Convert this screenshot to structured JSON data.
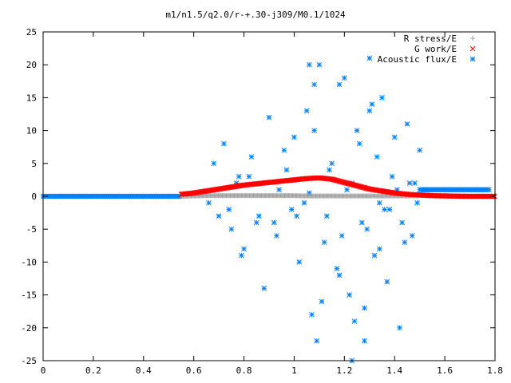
{
  "chart_data": {
    "type": "scatter",
    "title": "m1/n1.5/q2.0/r-+.30-j309/M0.1/1024",
    "xlim": [
      0,
      1.8
    ],
    "ylim": [
      -25,
      25
    ],
    "xticks": [
      "0",
      "0.2",
      "0.4",
      "0.6",
      "0.8",
      "1",
      "1.2",
      "1.4",
      "1.6",
      "1.8"
    ],
    "yticks": [
      "25",
      "20",
      "15",
      "10",
      "5",
      "0",
      "-5",
      "-10",
      "-15",
      "-20",
      "-25"
    ],
    "grid": false,
    "legend_position": "top-right",
    "series": [
      {
        "name": "R stress/E",
        "marker": "plus",
        "color": "#a0a0a0",
        "x": [
          0.55,
          0.6,
          0.65,
          0.7,
          0.75,
          0.8,
          0.85,
          0.9,
          0.95,
          1.0,
          1.05,
          1.1,
          1.15,
          1.2,
          1.25,
          1.3,
          1.35,
          1.4,
          1.45,
          1.5,
          1.55,
          1.6,
          1.65,
          1.7,
          1.75,
          1.8
        ],
        "y": [
          0.0,
          0.05,
          0.1,
          0.1,
          0.1,
          0.1,
          0.1,
          0.1,
          0.1,
          0.1,
          0.05,
          0.05,
          0.05,
          0.05,
          0.05,
          0.05,
          0.05,
          0.05,
          0.05,
          0.1,
          0.1,
          0.1,
          0.05,
          0.0,
          0.0,
          0.0
        ]
      },
      {
        "name": "G work/E",
        "marker": "cross",
        "color": "#ff0000",
        "x": [
          0.55,
          0.6,
          0.65,
          0.7,
          0.75,
          0.8,
          0.85,
          0.9,
          0.95,
          1.0,
          1.05,
          1.1,
          1.15,
          1.2,
          1.25,
          1.3,
          1.35,
          1.4,
          1.45,
          1.5,
          1.55,
          1.6,
          1.65,
          1.7,
          1.75,
          1.8
        ],
        "y": [
          0.3,
          0.5,
          0.8,
          1.1,
          1.4,
          1.7,
          1.9,
          2.1,
          2.3,
          2.5,
          2.7,
          2.8,
          2.6,
          2.1,
          1.6,
          1.1,
          0.8,
          0.5,
          0.3,
          0.2,
          0.1,
          0.05,
          0.02,
          0.0,
          0.0,
          0.0
        ]
      },
      {
        "name": "Acoustic flux/E",
        "marker": "star",
        "color": "#0080ff",
        "baseline_left": {
          "x0": 0.0,
          "x1": 0.55,
          "y": 0.0
        },
        "baseline_right": {
          "x0": 1.5,
          "x1": 1.78,
          "y": 1.0
        },
        "scatter_x": [
          0.72,
          0.75,
          0.78,
          0.8,
          0.83,
          0.86,
          0.9,
          0.93,
          0.97,
          1.0,
          1.02,
          1.05,
          1.07,
          1.1,
          1.12,
          1.15,
          1.18,
          1.2,
          1.22,
          1.25,
          1.27,
          1.3,
          1.32,
          1.35,
          1.37,
          1.4,
          1.42,
          1.45,
          1.47,
          1.5,
          0.68,
          0.74,
          0.79,
          0.82,
          0.88,
          0.92,
          0.96,
          1.01,
          1.04,
          1.08,
          1.11,
          1.14,
          1.17,
          1.21,
          1.24,
          1.28,
          1.31,
          1.34,
          1.38,
          1.41,
          1.44,
          1.48,
          0.62,
          0.66,
          0.7,
          0.77,
          0.85,
          0.94,
          0.99,
          1.06,
          1.13,
          1.19,
          1.23,
          1.26,
          1.29,
          1.33,
          1.36,
          1.39,
          1.43,
          1.46,
          1.49,
          1.52,
          1.09,
          1.18,
          1.23,
          1.06,
          1.3,
          1.34,
          1.28,
          1.08
        ],
        "scatter_y": [
          8,
          -5,
          3,
          -8,
          6,
          -3,
          12,
          -6,
          4,
          9,
          -10,
          13,
          -18,
          20,
          -7,
          5,
          -12,
          18,
          -15,
          10,
          -4,
          21,
          -9,
          15,
          -13,
          9,
          -20,
          11,
          -6,
          7,
          5,
          -2,
          -9,
          3,
          -14,
          -4,
          7,
          -3,
          -1,
          10,
          -16,
          4,
          -11,
          1,
          -19,
          -22,
          14,
          -1,
          -2,
          1,
          -7,
          2,
          0.5,
          -1,
          -3,
          2,
          -4,
          1,
          -2,
          0.5,
          -3,
          -6,
          2,
          8,
          -5,
          6,
          -2,
          3,
          -4,
          2,
          -1,
          1,
          -22,
          17,
          -25,
          20,
          13,
          -8,
          -17,
          17
        ]
      }
    ]
  }
}
